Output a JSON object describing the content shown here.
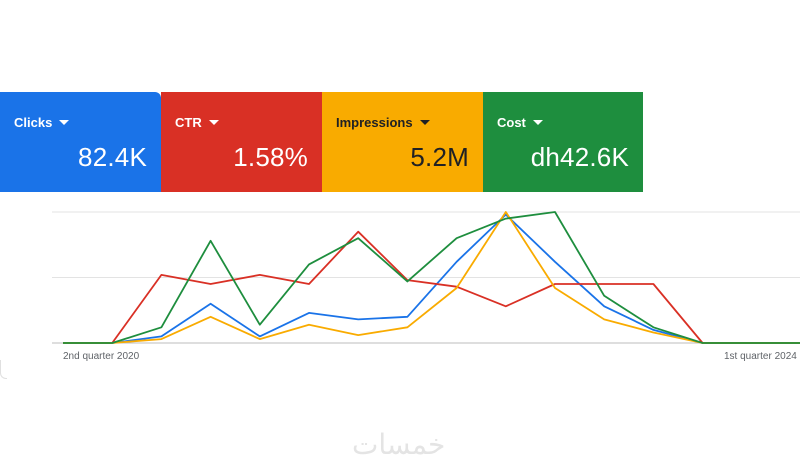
{
  "scorecards": [
    {
      "label": "Clicks",
      "value": "82.4K",
      "color": "#1a73e8"
    },
    {
      "label": "CTR",
      "value": "1.58%",
      "color": "#d93025"
    },
    {
      "label": "Impressions",
      "value": "5.2M",
      "color": "#f9ab00"
    },
    {
      "label": "Cost",
      "value": "dh42.6K",
      "color": "#1e8e3e"
    }
  ],
  "watermark": "خمسات",
  "chart_data": {
    "type": "line",
    "x": [
      "",
      "2nd quarter 2020",
      "",
      "",
      "",
      "",
      "",
      "",
      "",
      "",
      "",
      "",
      "",
      "",
      "1st quarter 2024",
      "",
      ""
    ],
    "tick_labels": [
      "2nd quarter 2020",
      "1st quarter 2024"
    ],
    "ylim": [
      0,
      100
    ],
    "grid": true,
    "series": [
      {
        "color": "#1a73e8",
        "values": [
          0,
          0,
          5,
          30,
          5,
          23,
          18,
          20,
          62,
          98,
          62,
          28,
          10,
          0,
          0,
          0,
          0
        ]
      },
      {
        "color": "#d93025",
        "values": [
          0,
          0,
          52,
          45,
          52,
          45,
          85,
          48,
          43,
          28,
          45,
          45,
          45,
          0,
          0,
          0,
          0
        ]
      },
      {
        "color": "#f9ab00",
        "values": [
          0,
          0,
          3,
          20,
          3,
          14,
          6,
          12,
          42,
          100,
          42,
          18,
          8,
          0,
          0,
          0,
          0
        ]
      },
      {
        "color": "#1e8e3e",
        "values": [
          0,
          0,
          12,
          78,
          14,
          60,
          80,
          47,
          80,
          95,
          100,
          36,
          12,
          0,
          0,
          0,
          0
        ]
      }
    ]
  }
}
